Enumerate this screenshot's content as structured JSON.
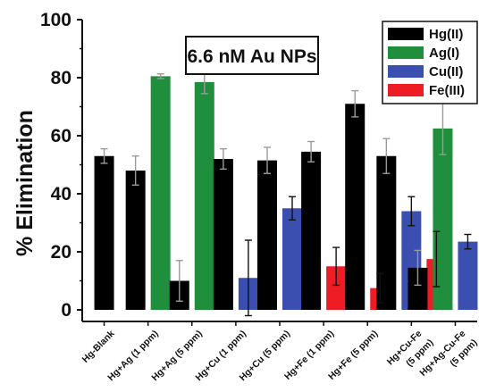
{
  "chart_data": {
    "type": "bar",
    "title": "",
    "xlabel": "",
    "ylabel": "% Elimination",
    "ylim": [
      -4,
      100
    ],
    "yticks": [
      0,
      20,
      40,
      60,
      80,
      100
    ],
    "legend_position": "top-right",
    "annotation": "6.6 nM Au NPs",
    "categories": [
      "Hg-Blank",
      "Hg+Ag (1 ppm)",
      "Hg+Ag (5 ppm)",
      "Hg+Cu (1 ppm)",
      "Hg+Cu (5 ppm)",
      "Hg+Fe (1 ppm)",
      "Hg+Fe (5 ppm)",
      "Hg+Cu-Fe\n(5 ppm)",
      "Hg+Ag-Cu-Fe\n(5 ppm)"
    ],
    "series": [
      {
        "name": "Hg(II)",
        "color": "#000000",
        "values": [
          53,
          48,
          10,
          52,
          51.5,
          54.5,
          71,
          53,
          14.5
        ],
        "errors": [
          2.5,
          5,
          7,
          3.5,
          4.5,
          3.5,
          4.5,
          6,
          6
        ]
      },
      {
        "name": "Ag(I)",
        "color": "#1f8f3e",
        "values": [
          null,
          80.5,
          78.5,
          null,
          null,
          null,
          null,
          null,
          62.5
        ],
        "errors": [
          null,
          0.8,
          4,
          null,
          null,
          null,
          null,
          null,
          9
        ]
      },
      {
        "name": "Cu(II)",
        "color": "#3a4fb0",
        "values": [
          null,
          null,
          null,
          11,
          35,
          null,
          null,
          34,
          23.5
        ],
        "errors": [
          null,
          null,
          null,
          13,
          4,
          null,
          null,
          5,
          2.5
        ]
      },
      {
        "name": "Fe(III)",
        "color": "#ee1c25",
        "values": [
          null,
          null,
          null,
          null,
          null,
          15,
          7.5,
          17.5,
          14.5
        ],
        "errors": [
          null,
          null,
          null,
          null,
          null,
          6.5,
          5,
          9.5,
          10
        ]
      }
    ]
  }
}
